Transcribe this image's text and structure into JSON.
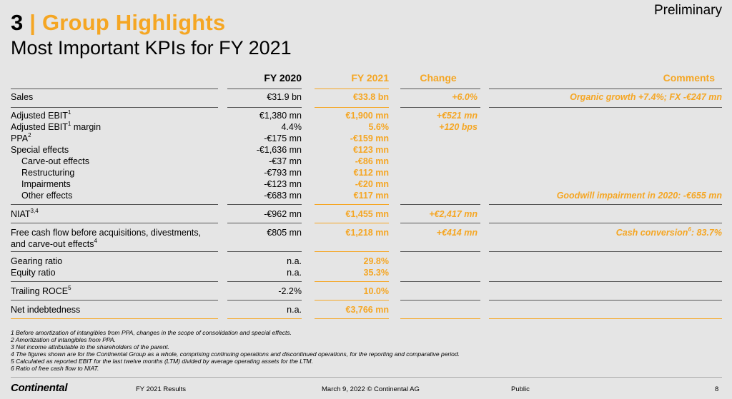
{
  "header": {
    "preliminary": "Preliminary",
    "section_number": "3",
    "section_separator": "|",
    "section_title": "Group Highlights",
    "subtitle": "Most Important KPIs for FY 2021"
  },
  "columns": {
    "fy2020": "FY 2020",
    "fy2021": "FY 2021",
    "change": "Change",
    "comments": "Comments"
  },
  "rows": [
    {
      "label": "Sales",
      "sup": "",
      "fy2020": "€31.9 bn",
      "fy2021": "€33.8 bn",
      "change": "+6.0%",
      "comment": "Organic growth +7.4%; FX -€247 mn"
    },
    {
      "label": "Adjusted EBIT",
      "sup": "1",
      "fy2020": "€1,380 mn",
      "fy2021": "€1,900 mn",
      "change": "+€521 mn",
      "comment": ""
    },
    {
      "label": "Adjusted EBIT",
      "sup": "1",
      "label_suffix": " margin",
      "fy2020": "4.4%",
      "fy2021": "5.6%",
      "change": "+120 bps",
      "comment": ""
    },
    {
      "label": "PPA",
      "sup": "2",
      "fy2020": "-€175 mn",
      "fy2021": "-€159 mn",
      "change": "",
      "comment": ""
    },
    {
      "label": "Special effects",
      "sup": "",
      "fy2020": "-€1,636 mn",
      "fy2021": "€123 mn",
      "change": "",
      "comment": ""
    },
    {
      "label": "Carve-out effects",
      "sup": "",
      "fy2020": "-€37 mn",
      "fy2021": "-€86 mn",
      "change": "",
      "comment": ""
    },
    {
      "label": "Restructuring",
      "sup": "",
      "fy2020": "-€793 mn",
      "fy2021": "€112 mn",
      "change": "",
      "comment": ""
    },
    {
      "label": "Impairments",
      "sup": "",
      "fy2020": "-€123 mn",
      "fy2021": "-€20 mn",
      "change": "",
      "comment": ""
    },
    {
      "label": "Other effects",
      "sup": "",
      "fy2020": "-€683 mn",
      "fy2021": "€117 mn",
      "change": "",
      "comment": "Goodwill impairment in 2020: -€655 mn"
    },
    {
      "label": "NIAT",
      "sup": "3,4",
      "fy2020": "-€962 mn",
      "fy2021": "€1,455 mn",
      "change": "+€2,417 mn",
      "comment": ""
    },
    {
      "label": "Free cash flow before acquisitions, divestments,",
      "label2": "and carve-out effects",
      "sup2": "4",
      "fy2020": "€805 mn",
      "fy2021": "€1,218 mn",
      "change": "+€414 mn",
      "comment": "Cash conversion",
      "comment_sup": "6",
      "comment_suffix": ": 83.7%"
    },
    {
      "label": "Gearing ratio",
      "sup": "",
      "fy2020": "n.a.",
      "fy2021": "29.8%",
      "change": "",
      "comment": ""
    },
    {
      "label": "Equity ratio",
      "sup": "",
      "fy2020": "n.a.",
      "fy2021": "35.3%",
      "change": "",
      "comment": ""
    },
    {
      "label": "Trailing ROCE",
      "sup": "5",
      "fy2020": "-2.2%",
      "fy2021": "10.0%",
      "change": "",
      "comment": ""
    },
    {
      "label": "Net indebtedness",
      "sup": "",
      "fy2020": "n.a.",
      "fy2021": "€3,766 mn",
      "change": "",
      "comment": ""
    }
  ],
  "footnotes": [
    "1 Before amortization of intangibles from PPA, changes in the scope of consolidation and special effects.",
    "2 Amortization of intangibles from PPA.",
    "3 Net income attributable to the shareholders of the parent.",
    "4 The figures shown are for the Continental Group as a whole, comprising continuing operations and discontinued operations, for the reporting and comparative period.",
    "5 Calculated as reported EBIT for the last twelve months (LTM) divided by average operating assets for the LTM.",
    "6 Ratio of free cash flow to NIAT."
  ],
  "footer": {
    "logo": "Continental",
    "report": "FY 2021 Results",
    "date": "March 9, 2022 © Continental AG",
    "classification": "Public",
    "page": "8"
  },
  "colors": {
    "accent": "#f5a623",
    "background": "#e5e5e5"
  }
}
